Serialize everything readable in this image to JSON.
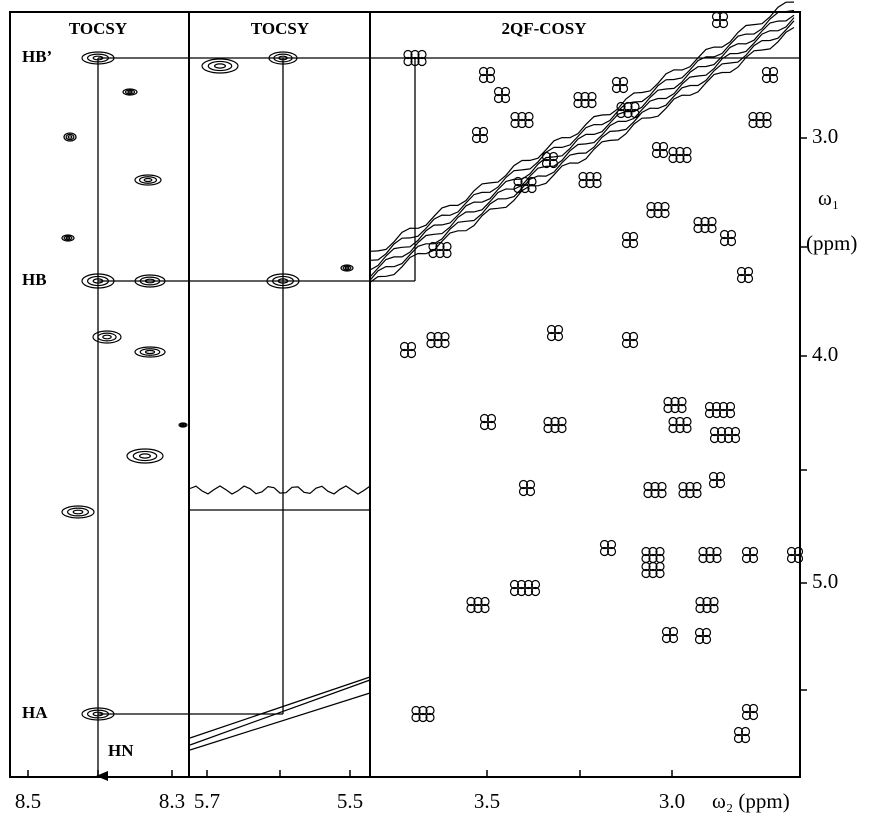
{
  "panels": [
    {
      "title": "TOCSY"
    },
    {
      "title": "TOCSY"
    },
    {
      "title": "2QF-COSY"
    }
  ],
  "x_tick_labels": [
    "8.5",
    "8.3",
    "5.7",
    "5.5",
    "3.5",
    "3.0"
  ],
  "x_axis_label": "ω₂ (ppm)",
  "y_tick_labels": [
    "3.0",
    "4.0",
    "5.0"
  ],
  "y_axis_label": {
    "symbol": "ω₁",
    "unit": "(ppm)"
  },
  "peak_labels": {
    "hb_prime": "HB’",
    "hb": "HB",
    "ha": "HA",
    "hn": "HN"
  }
}
